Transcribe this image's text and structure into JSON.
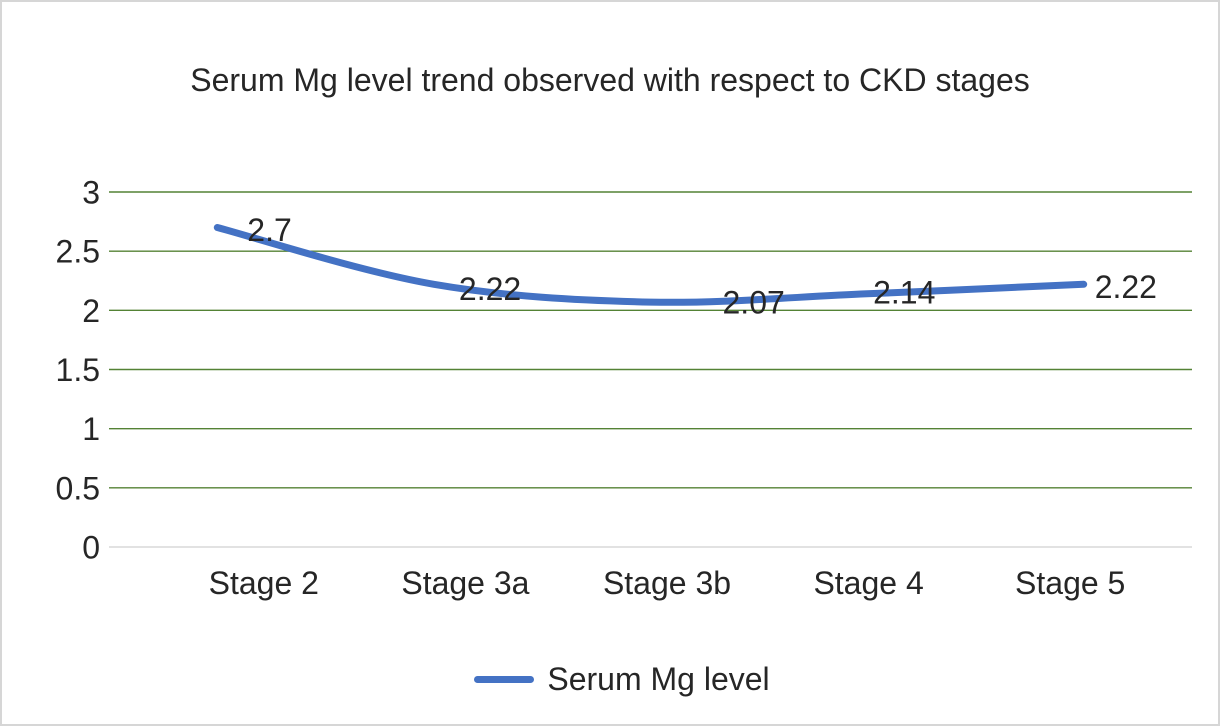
{
  "chart_data": {
    "type": "line",
    "title": "Serum Mg level trend observed with respect to CKD stages",
    "categories": [
      "Stage 2",
      "Stage 3a",
      "Stage 3b",
      "Stage 4",
      "Stage 5"
    ],
    "series": [
      {
        "name": "Serum Mg level",
        "values": [
          2.7,
          2.22,
          2.07,
          2.14,
          2.22
        ],
        "color": "#4472C4"
      }
    ],
    "data_labels": [
      "2.7",
      "2.22",
      "2.07",
      "2.14",
      "2.22"
    ],
    "xlabel": "",
    "ylabel": "",
    "ylim": [
      0,
      3
    ],
    "y_ticks": [
      "0",
      "0.5",
      "1",
      "1.5",
      "2",
      "2.5",
      "3"
    ],
    "grid": "horizontal gridlines on",
    "legend_position": "bottom",
    "colors": {
      "series_line": "#4472C4",
      "gridline": "#548235",
      "axis_line": "#d9d9d9",
      "text": "#262626"
    }
  }
}
